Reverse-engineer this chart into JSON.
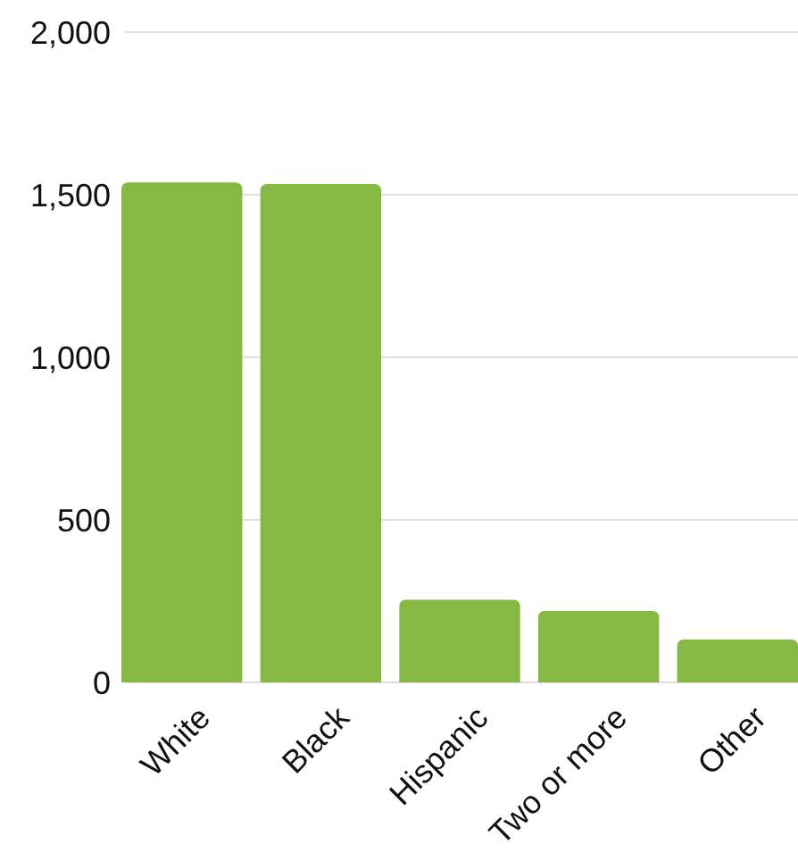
{
  "chart_data": {
    "type": "bar",
    "categories": [
      "White",
      "Black",
      "Hispanic",
      "Two or more",
      "Other"
    ],
    "values": [
      1538,
      1533,
      254,
      220,
      132
    ],
    "color": "#86b943",
    "ylim": [
      0,
      2000
    ],
    "yticks": [
      0,
      {
        "value": 500,
        "label": "500"
      },
      {
        "value": 1000,
        "label": "1,000"
      },
      {
        "value": 1500,
        "label": "1,500"
      },
      {
        "value": 2000,
        "label": "2,000"
      }
    ],
    "grid": "y"
  }
}
